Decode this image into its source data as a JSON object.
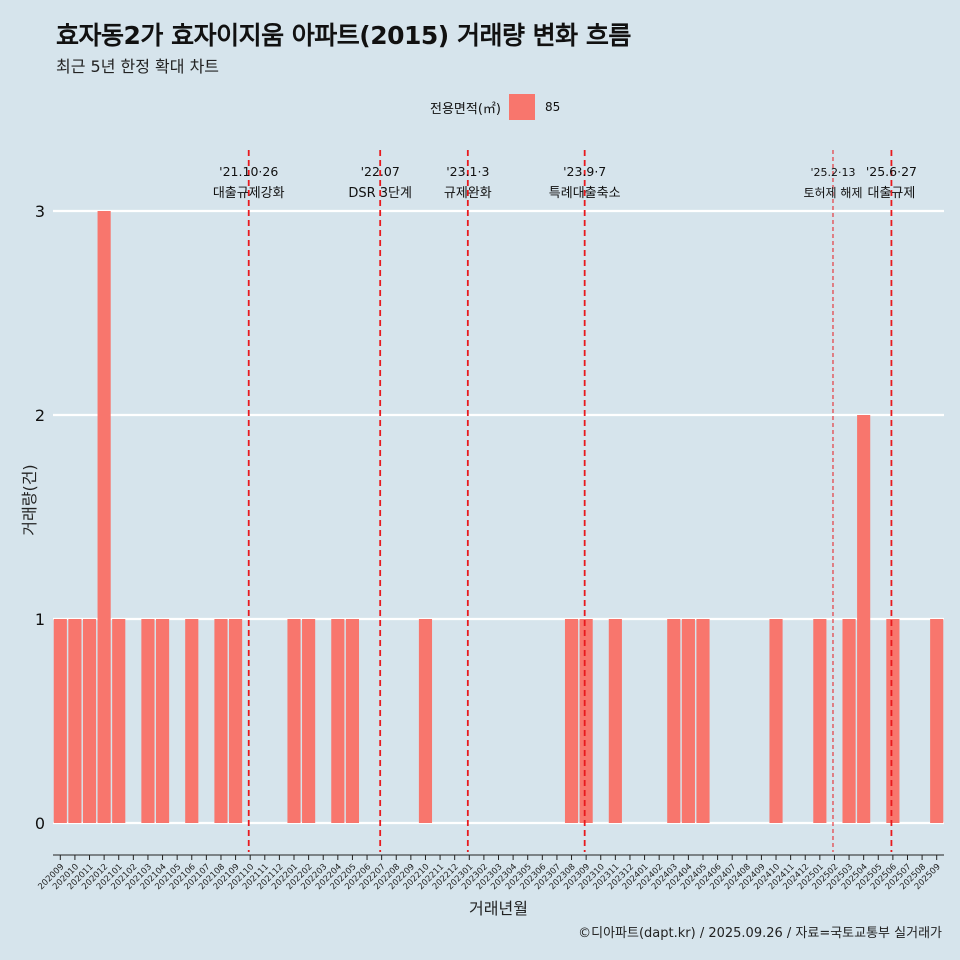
{
  "title": "효자동2가 효자이지움 아파트(2015) 거래량 변화 흐름",
  "subtitle": "최근 5년 한정 확대 차트",
  "caption": "©디아파트(dapt.kr) / 2025.09.26 / 자료=국토교통부 실거래가",
  "legend": {
    "title": "전용면적(㎡)",
    "label": "85",
    "color": "#f8766d"
  },
  "chart_data": {
    "type": "bar",
    "xlabel": "거래년월",
    "ylabel": "거래량(건)",
    "ylim": [
      0,
      3
    ],
    "yticks": [
      0,
      1,
      2,
      3
    ],
    "bar_color": "#f8766d",
    "grid": true,
    "categories": [
      "202009",
      "202010",
      "202011",
      "202012",
      "202101",
      "202102",
      "202103",
      "202104",
      "202105",
      "202106",
      "202107",
      "202108",
      "202109",
      "202110",
      "202111",
      "202112",
      "202201",
      "202202",
      "202203",
      "202204",
      "202205",
      "202206",
      "202207",
      "202208",
      "202209",
      "202210",
      "202211",
      "202212",
      "202301",
      "202302",
      "202303",
      "202304",
      "202305",
      "202306",
      "202307",
      "202308",
      "202309",
      "202310",
      "202311",
      "202312",
      "202401",
      "202402",
      "202403",
      "202404",
      "202405",
      "202406",
      "202407",
      "202408",
      "202409",
      "202410",
      "202411",
      "202412",
      "202501",
      "202502",
      "202503",
      "202504",
      "202505",
      "202506",
      "202507",
      "202508",
      "202509"
    ],
    "values": [
      1,
      1,
      1,
      3,
      1,
      0,
      1,
      1,
      0,
      1,
      0,
      1,
      1,
      0,
      0,
      0,
      1,
      1,
      0,
      1,
      1,
      0,
      0,
      0,
      0,
      1,
      0,
      0,
      0,
      0,
      0,
      0,
      0,
      0,
      0,
      1,
      1,
      0,
      1,
      0,
      0,
      0,
      1,
      1,
      1,
      0,
      0,
      0,
      0,
      1,
      0,
      0,
      1,
      0,
      1,
      2,
      0,
      1,
      0,
      0,
      1
    ],
    "annotations": [
      {
        "index": 13.4,
        "date": "'21.10·26",
        "label": "대출규제강화",
        "style": "bold"
      },
      {
        "index": 22.4,
        "date": "'22.07",
        "label": "DSR 3단계",
        "style": "bold"
      },
      {
        "index": 28.4,
        "date": "'23.1·3",
        "label": "규제완화",
        "style": "bold"
      },
      {
        "index": 36.4,
        "date": "'23.9·7",
        "label": "특례대출축소",
        "style": "bold"
      },
      {
        "index": 53.4,
        "date": "'25.2·13",
        "label": "토허제 해제",
        "style": "thin"
      },
      {
        "index": 57.4,
        "date": "'25.6·27",
        "label": "대출규제",
        "style": "bold"
      }
    ]
  }
}
